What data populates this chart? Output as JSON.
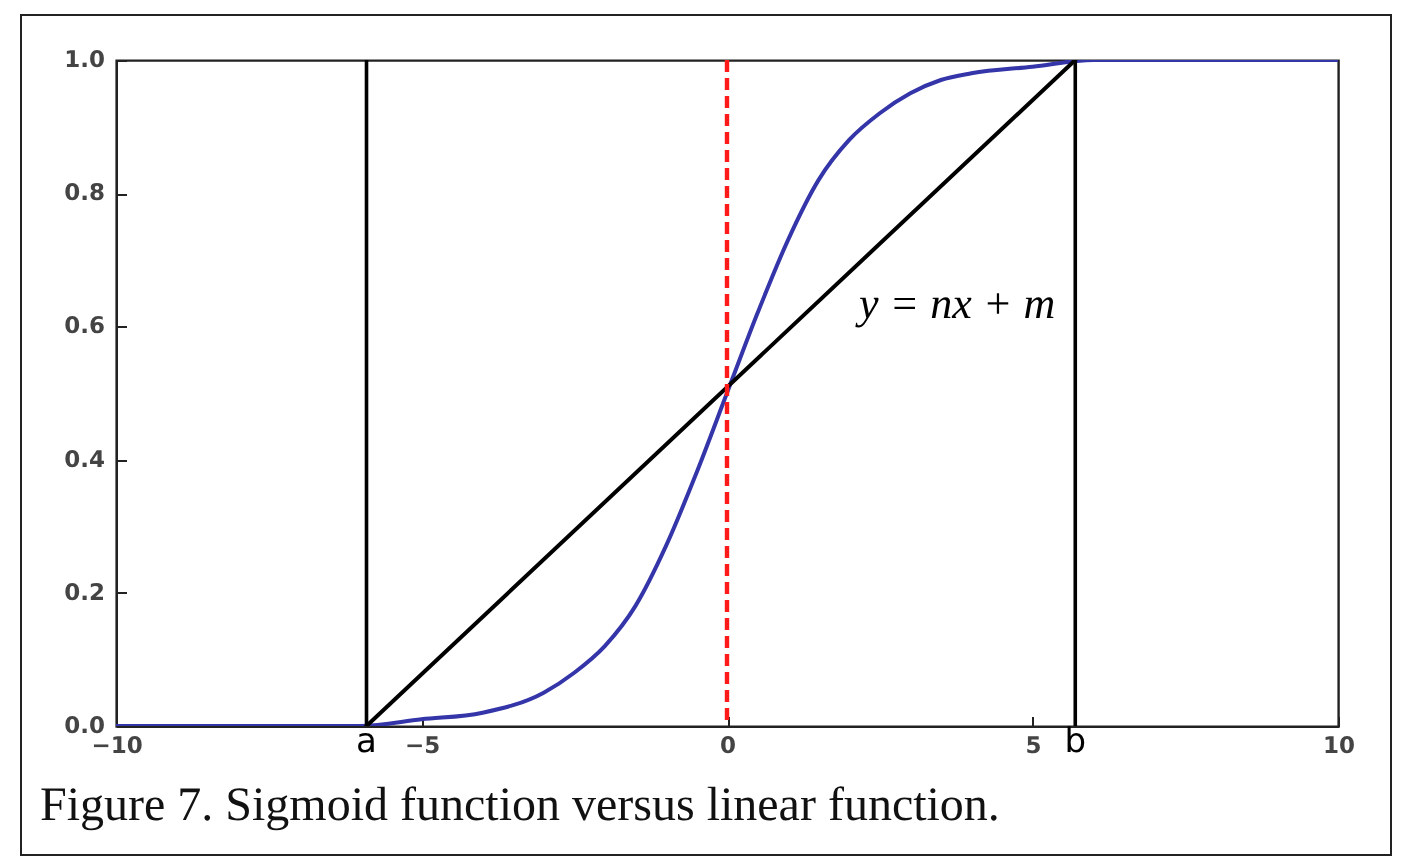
{
  "chart_data": {
    "type": "line",
    "series": [
      {
        "color": "#3535aa",
        "x": [
          -10,
          -8,
          -6,
          -5,
          -4,
          -3,
          -2.5,
          -2,
          -1.5,
          -1,
          -0.5,
          0,
          0.5,
          1,
          1.5,
          2,
          2.5,
          3,
          3.5,
          4,
          5,
          6,
          8,
          10
        ],
        "values": [
          0,
          0,
          0,
          0.01,
          0.02,
          0.05,
          0.08,
          0.12,
          0.18,
          0.27,
          0.38,
          0.5,
          0.62,
          0.73,
          0.82,
          0.88,
          0.92,
          0.95,
          0.97,
          0.98,
          0.99,
          1,
          1,
          1
        ]
      },
      {
        "name": "y = nx + m",
        "color": "#000000",
        "x": [
          -5.9,
          5.7
        ],
        "values": [
          0,
          1
        ]
      }
    ],
    "xlim": [
      -10,
      10
    ],
    "ylim": [
      0,
      1
    ],
    "xticks": [
      {
        "value": -10,
        "label": "−10"
      },
      {
        "value": -5,
        "label": "−5"
      },
      0,
      5,
      10
    ],
    "yticks": [
      {
        "value": 0,
        "label": "0.0"
      },
      0.2,
      0.4,
      0.6,
      0.8,
      {
        "value": 1,
        "label": "1.0"
      }
    ],
    "ref_lines": [
      {
        "axis": "x",
        "value": -5.9,
        "label": "a",
        "color": "#000000"
      },
      {
        "axis": "x",
        "value": 5.7,
        "label": "b",
        "color": "#000000"
      },
      {
        "axis": "x",
        "value": 0,
        "color": "#ff1a1a",
        "line_style": "dashed"
      }
    ],
    "annotations": [
      "Figure 7. Sigmoid function versus linear function."
    ],
    "grid": false,
    "marker": "none"
  }
}
